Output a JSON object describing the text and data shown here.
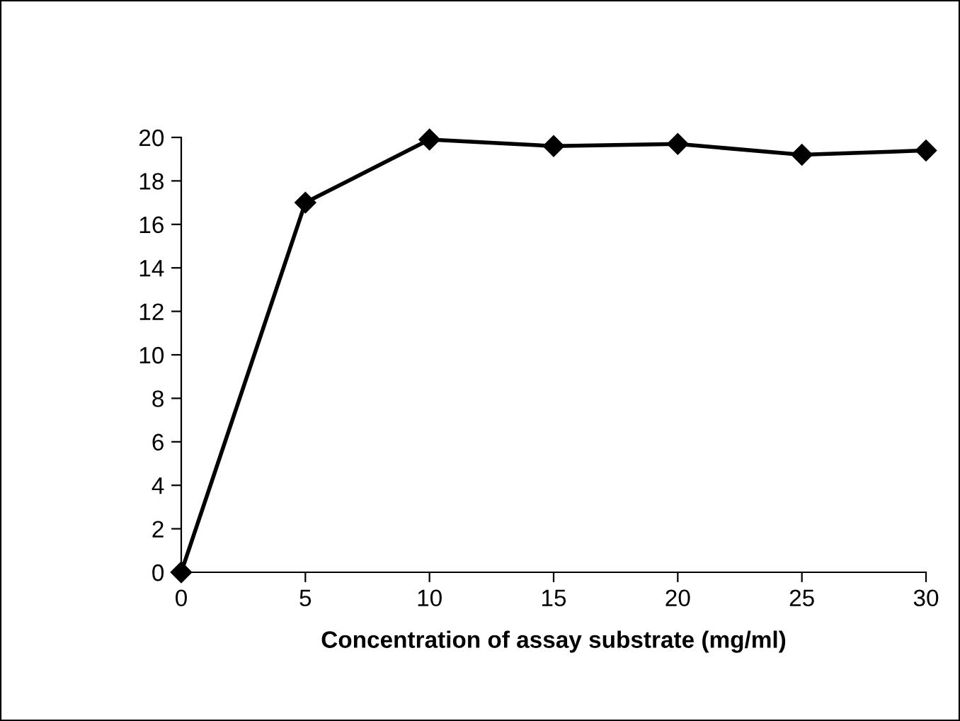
{
  "chart_data": {
    "type": "line",
    "xlabel": "Concentration of assay substrate (mg/ml)",
    "x": [
      0,
      5,
      10,
      15,
      20,
      25,
      30
    ],
    "series": [
      {
        "color": "#000000",
        "values": [
          0,
          17.0,
          19.9,
          19.6,
          19.7,
          19.2,
          19.4
        ]
      }
    ],
    "xlim": [
      0,
      30
    ],
    "xticks": [
      0,
      5,
      10,
      15,
      20,
      25,
      30
    ],
    "ylim": [
      0,
      20
    ],
    "yticks": [
      0,
      2,
      4,
      6,
      8,
      10,
      12,
      14,
      16,
      18,
      20
    ],
    "marker": "diamond",
    "line_style": "solid",
    "grid": false,
    "legend": false
  }
}
